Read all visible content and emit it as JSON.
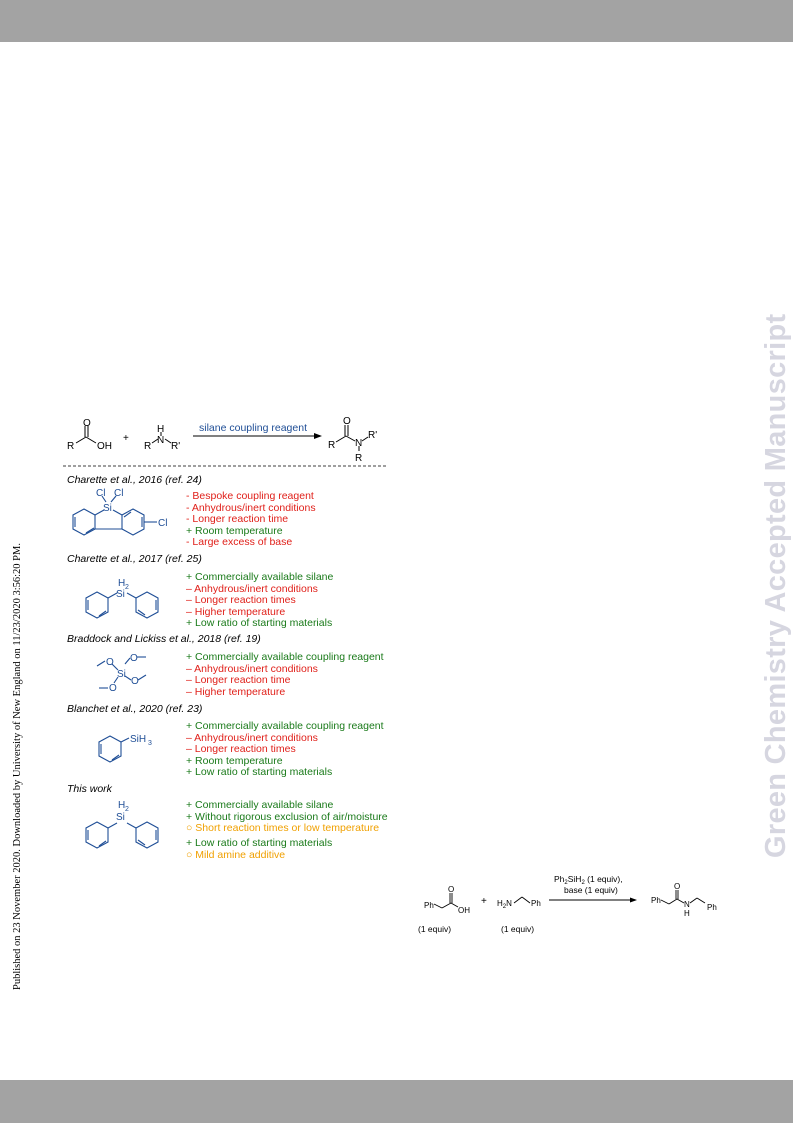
{
  "side_left": "Published on 23 November 2020. Downloaded by University of New England on 11/23/2020 3:56:20 PM.",
  "side_right": "Green Chemistry Accepted Manuscript",
  "scheme": {
    "arrow_label": "silane coupling reagent",
    "atoms": {
      "R": "R",
      "OH": "OH",
      "O": "O",
      "H": "H",
      "N": "N",
      "Rp": "R'",
      "plus": "+",
      "Cl": "Cl",
      "Si": "Si",
      "H2": "H",
      "sub2": "2",
      "SiH": "SiH",
      "sub3": "3"
    },
    "sections": [
      {
        "title": "Charette et al., 2016 (ref. 24)",
        "points": [
          "-  Bespoke coupling reagent",
          "-  Anhydrous/inert conditions",
          "-  Longer reaction time",
          "+ Room temperature",
          "-  Large excess of base"
        ]
      },
      {
        "title": "Charette et al., 2017 (ref. 25)",
        "points": [
          "+ Commercially available silane",
          "– Anhydrous/inert conditions",
          "– Longer reaction times",
          "– Higher temperature",
          "+ Low ratio of starting materials"
        ]
      },
      {
        "title": "Braddock and Lickiss et al., 2018 (ref. 19)",
        "points": [
          "+ Commercially available coupling reagent",
          "– Anhydrous/inert conditions",
          "– Longer reaction time",
          "– Higher temperature"
        ]
      },
      {
        "title": "Blanchet et al., 2020 (ref. 23)",
        "points": [
          "+ Commercially available coupling reagent",
          "– Anhydrous/inert conditions",
          "– Longer reaction times",
          "+ Room temperature",
          "+ Low ratio of starting materials"
        ]
      },
      {
        "title": "This work",
        "points": [
          "+ Commercially available silane",
          "+ Without rigorous exclusion of air/moisture",
          "○ Short reaction times or low temperature",
          "+ Low ratio of starting materials",
          "○ Mild amine additive"
        ]
      }
    ]
  },
  "reaction2": {
    "cond_line1_a": "Ph",
    "cond_line1_sub1": "2",
    "cond_line1_b": "SiH",
    "cond_line1_sub2": "2",
    "cond_line1_c": " (1 equiv),",
    "cond_line2": "base (1 equiv)",
    "equiv1": "(1 equiv)",
    "equiv2": "(1 equiv)",
    "Ph": "Ph",
    "H2N_a": "H",
    "H2N_sub": "2",
    "H2N_b": "N",
    "OH": "OH",
    "O": "O",
    "N": "N",
    "H": "H",
    "plus": "+"
  },
  "colors": {
    "structure_blue": "#1f4e96",
    "negative": "#e0201a",
    "positive": "#1a7a1a",
    "neutral": "#f0a000"
  }
}
